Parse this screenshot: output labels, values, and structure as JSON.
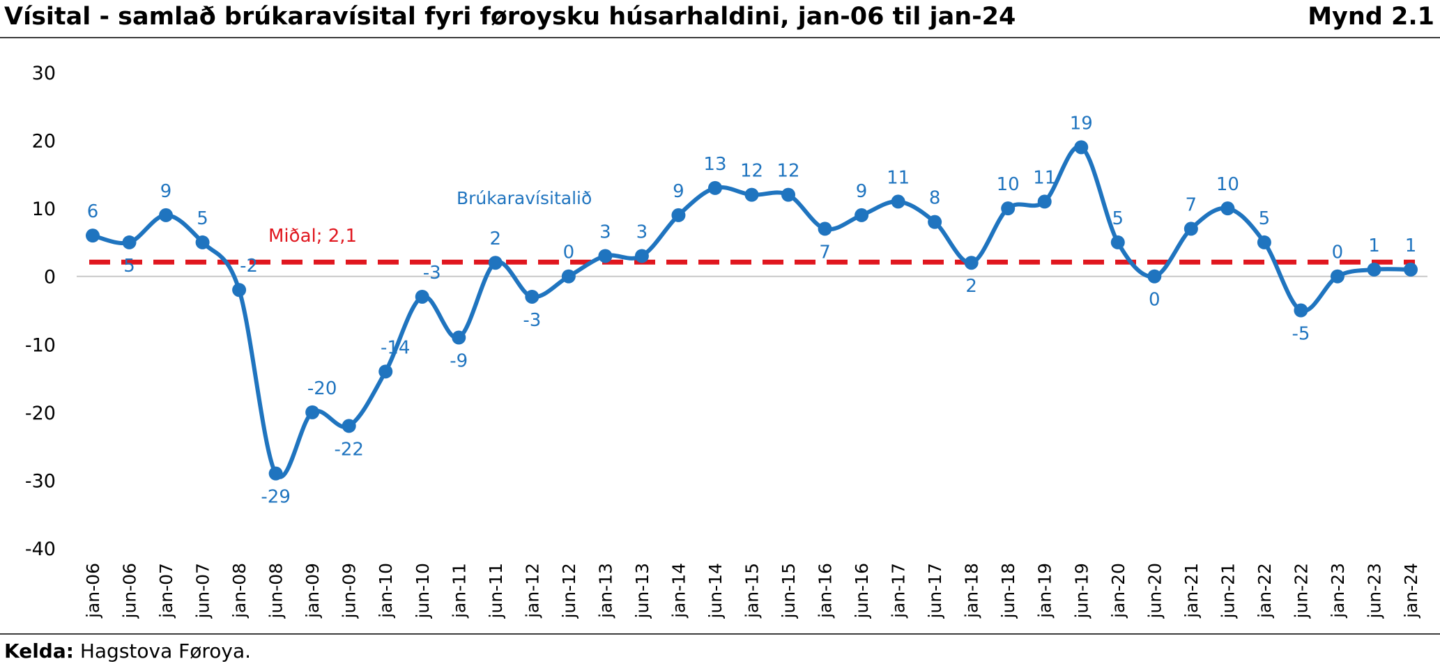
{
  "header": {
    "title": "Vísital - samlað brúkaravísital fyri føroysku húsarhaldini, jan-06 til jan-24",
    "figure_number": "Mynd 2.1"
  },
  "footer": {
    "source_label": "Kelda:",
    "source_text": "Hagstova Føroya."
  },
  "colors": {
    "series": "#1F74BF",
    "mean_line": "#E0161E",
    "zero_line": "#C8C8C8",
    "axis_text": "#000000"
  },
  "chart_data": {
    "type": "line",
    "title": "Vísital - samlað brúkaravísital fyri føroysku húsarhaldini, jan-06 til jan-24",
    "categories": [
      "jan-06",
      "jun-06",
      "jan-07",
      "jun-07",
      "jan-08",
      "jun-08",
      "jan-09",
      "jun-09",
      "jan-10",
      "jun-10",
      "jan-11",
      "jun-11",
      "jan-12",
      "jun-12",
      "jan-13",
      "jun-13",
      "jan-14",
      "jun-14",
      "jan-15",
      "jun-15",
      "jan-16",
      "jun-16",
      "jan-17",
      "jun-17",
      "jan-18",
      "jun-18",
      "jan-19",
      "jun-19",
      "jan-20",
      "jun-20",
      "jan-21",
      "jun-21",
      "jan-22",
      "jun-22",
      "jan-23",
      "jun-23",
      "jan-24"
    ],
    "series": [
      {
        "name": "Brúkaravísitalið",
        "values": [
          6,
          5,
          9,
          5,
          -2,
          -29,
          -20,
          -22,
          -14,
          -3,
          -9,
          2,
          -3,
          0,
          3,
          3,
          9,
          13,
          12,
          12,
          7,
          9,
          11,
          8,
          2,
          10,
          11,
          19,
          5,
          0,
          7,
          10,
          5,
          -5,
          0,
          1,
          1
        ],
        "data_labels": [
          "6",
          "5",
          "9",
          "5",
          "-2",
          "-29",
          "-20",
          "-22",
          "-14",
          "-3",
          "-9",
          "2",
          "-3",
          "0",
          "3",
          "3",
          "9",
          "13",
          "12",
          "12",
          "7",
          "9",
          "11",
          "8",
          "2",
          "10",
          "11",
          "19",
          "5",
          "0",
          "7",
          "10",
          "5",
          "-5",
          "0",
          "1",
          "1"
        ]
      }
    ],
    "mean": {
      "label": "Miðal; 2,1",
      "value": 2.1
    },
    "ylim": [
      -40,
      30
    ],
    "yticks": [
      "30",
      "20",
      "10",
      "0",
      "-10",
      "-20",
      "-30",
      "-40"
    ],
    "ytick_values": [
      30,
      20,
      10,
      0,
      -10,
      -20,
      -30,
      -40
    ],
    "grid": false,
    "legend": "none"
  }
}
